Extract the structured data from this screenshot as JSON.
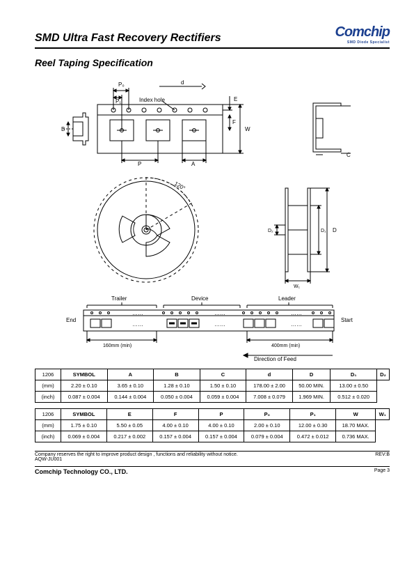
{
  "header": {
    "title": "SMD Ultra Fast Recovery Rectifiers",
    "logo_text": "Comchip",
    "logo_sub": "SMD Diode Specialist"
  },
  "subtitle": "Reel Taping Specification",
  "diagram_labels": {
    "P0": "P₀",
    "P1": "P₁",
    "d": "d",
    "index_hole": "Index hole",
    "E": "E",
    "F": "F",
    "W": "W",
    "B": "B",
    "P": "P",
    "A": "A",
    "C": "C",
    "angle": "120°",
    "D": "D",
    "D1": "D₁",
    "D2": "D₂",
    "W1": "W₁",
    "trailer": "Trailer",
    "device": "Device",
    "leader": "Leader",
    "end": "End",
    "start": "Start",
    "trailer_min": "160mm (min)",
    "leader_min": "400mm (min)",
    "direction": "Direction   of   Feed"
  },
  "table1": {
    "package": "1206",
    "header": [
      "SYMBOL",
      "A",
      "B",
      "C",
      "d",
      "D",
      "D₁",
      "D₂"
    ],
    "rows": [
      {
        "unit": "(mm)",
        "vals": [
          "2.20 ± 0.10",
          "3.65 ± 0.10",
          "1.28 ± 0.10",
          "1.50 ± 0.10",
          "178.00 ± 2.00",
          "50.00 MIN.",
          "13.00 ± 0.50"
        ]
      },
      {
        "unit": "(inch)",
        "vals": [
          "0.087 ± 0.004",
          "0.144 ± 0.004",
          "0.050 ± 0.004",
          "0.059 ± 0.004",
          "7.008 ± 0.079",
          "1.969 MIN.",
          "0.512 ± 0.020"
        ]
      }
    ]
  },
  "table2": {
    "package": "1206",
    "header": [
      "SYMBOL",
      "E",
      "F",
      "P",
      "P₀",
      "P₁",
      "W",
      "W₁"
    ],
    "rows": [
      {
        "unit": "(mm)",
        "vals": [
          "1.75 ± 0.10",
          "5.50 ± 0.05",
          "4.00 ± 0.10",
          "4.00 ± 0.10",
          "2.00 ± 0.10",
          "12.00 ± 0.30",
          "18.70 MAX."
        ]
      },
      {
        "unit": "(inch)",
        "vals": [
          "0.069 ± 0.004",
          "0.217 ± 0.002",
          "0.157 ± 0.004",
          "0.157 ± 0.004",
          "0.079 ± 0.004",
          "0.472 ± 0.012",
          "0.736 MAX."
        ]
      }
    ]
  },
  "footer": {
    "note": "Company reserves the right to improve product design , functions and reliability without notice.",
    "rev": "REV:B",
    "doc": "AQW-JU001",
    "company": "Comchip Technology CO., LTD.",
    "page": "Page 3"
  },
  "colors": {
    "line": "#000000",
    "logo": "#1b3f8f"
  }
}
